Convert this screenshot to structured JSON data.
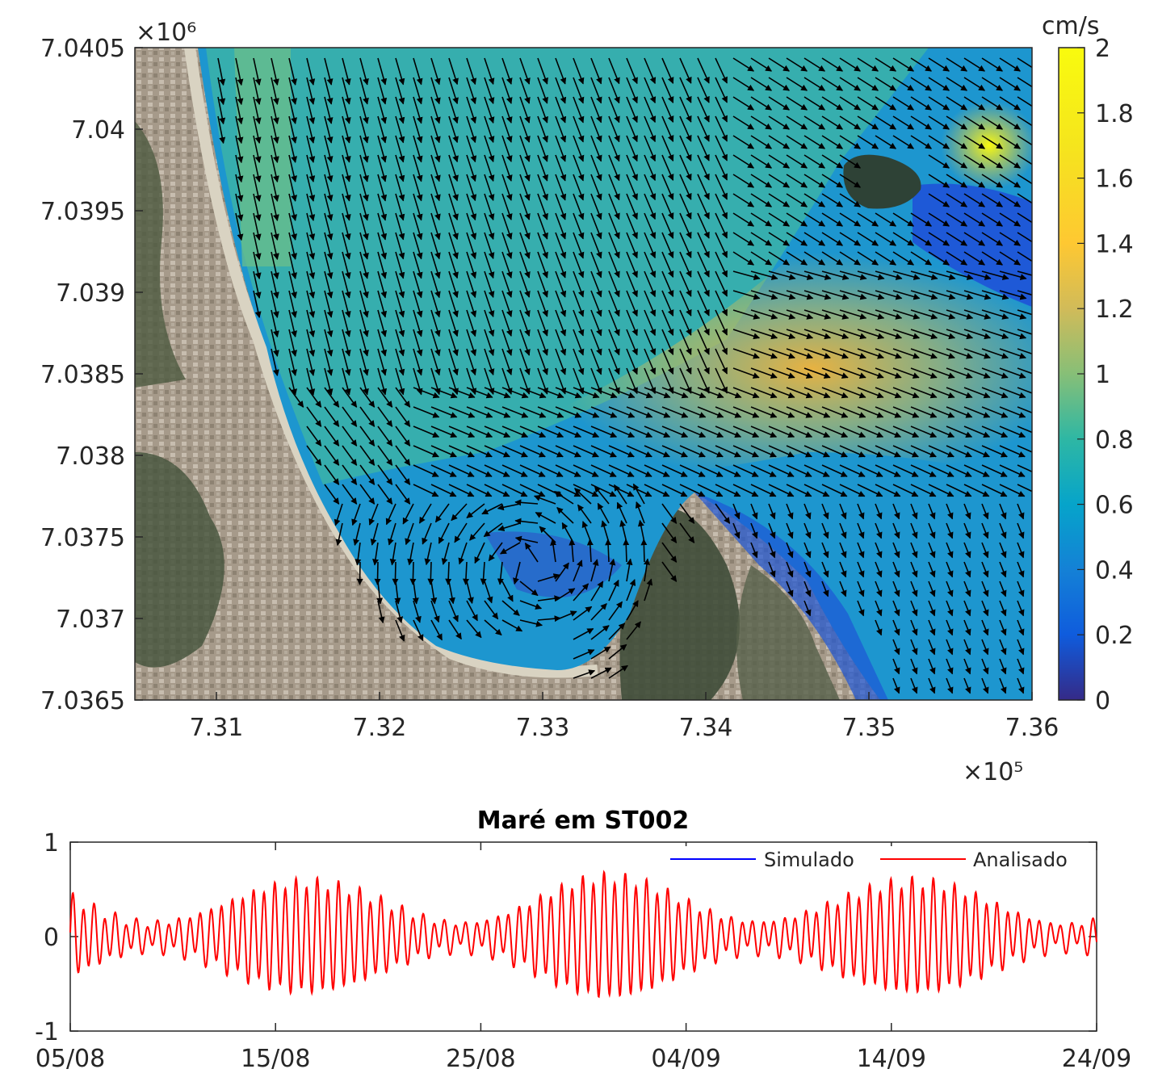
{
  "chart_data": [
    {
      "type": "heatmap",
      "description_type": "current-speed map with velocity vectors over satellite image",
      "x_exponent": "×10⁵",
      "y_exponent": "×10⁶",
      "xlim": [
        7.305,
        7.36
      ],
      "ylim": [
        7.0365,
        7.0405
      ],
      "x_ticks": [
        "7.31",
        "7.32",
        "7.33",
        "7.34",
        "7.35",
        "7.36"
      ],
      "y_ticks": [
        "7.0405",
        "7.04",
        "7.0395",
        "7.039",
        "7.0385",
        "7.038",
        "7.0375",
        "7.037",
        "7.0365"
      ],
      "colorbar": {
        "unit": "cm/s",
        "range": [
          0,
          2
        ],
        "ticks": [
          "2",
          "1.8",
          "1.6",
          "1.4",
          "1.2",
          "1",
          "0.8",
          "0.6",
          "0.4",
          "0.2",
          "0"
        ],
        "colormap": "parula"
      }
    },
    {
      "type": "line",
      "title": "Maré em ST002",
      "ylim": [
        -1,
        1
      ],
      "y_ticks": [
        "1",
        "0",
        "-1"
      ],
      "x_ticks": [
        "05/08",
        "15/08",
        "25/08",
        "04/09",
        "14/09",
        "24/09"
      ],
      "x_range_days": [
        0,
        50
      ],
      "legend_position": "top-right",
      "series": [
        {
          "name": "Simulado",
          "color": "#0000ff"
        },
        {
          "name": "Analisado",
          "color": "#ff0000",
          "note": "semidiurnal tide, spring/neap amplitude 0.15–0.6"
        }
      ]
    }
  ]
}
